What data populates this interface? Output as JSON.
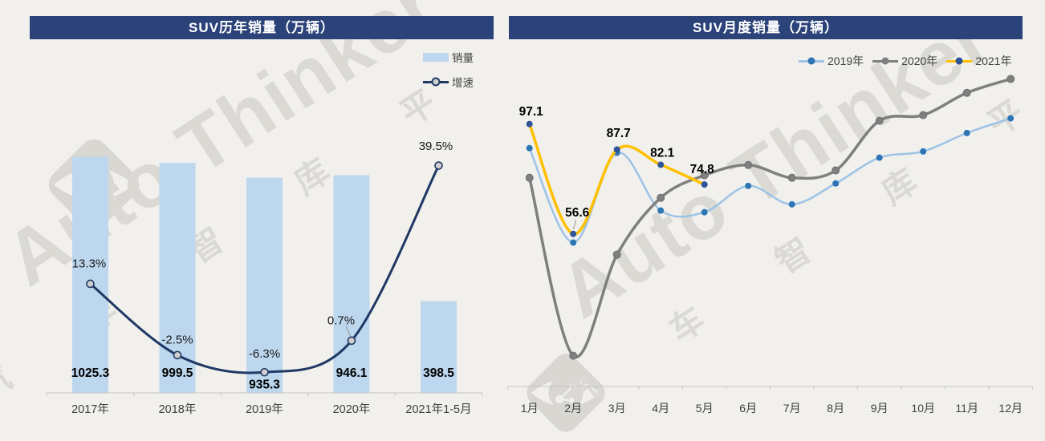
{
  "watermark": {
    "brand": "Auto Thinker",
    "cn": "汽 车 智 库 平 台"
  },
  "colors": {
    "background": "#F1F0ED",
    "banner": "#2B4379",
    "bar_fill": "#BDD7EE",
    "growth_line": "#1F3864",
    "growth_marker_fill": "#D0CECE",
    "axis": "#C6C5C1",
    "label_dark": "#000000",
    "axis_text": "#3F3F3F",
    "series_2019": "#9DC3E6",
    "series_2019_marker": "#2E75B6",
    "series_2020": "#7F7F7F",
    "series_2020_marker": "#7F7F7F",
    "series_2021": "#FFC000",
    "series_2021_marker": "#2F5597",
    "watermark_gray": "#DBD9D4"
  },
  "chart_data": [
    {
      "type": "bar+line",
      "title": "SUV历年销量（万辆）",
      "categories": [
        "2017年",
        "2018年",
        "2019年",
        "2020年",
        "2021年1-5月"
      ],
      "series": [
        {
          "name": "销量",
          "type": "bar",
          "values": [
            1025.3,
            999.5,
            935.3,
            946.1,
            398.5
          ],
          "labels": [
            "1025.3",
            "999.5",
            "935.3",
            "946.1",
            "398.5"
          ]
        },
        {
          "name": "增速",
          "type": "line",
          "unit": "%",
          "axis": "secondary",
          "values": [
            13.3,
            -2.5,
            -6.3,
            0.7,
            39.5
          ],
          "labels": [
            "13.3%",
            "-2.5%",
            "-6.3%",
            "0.7%",
            "39.5%"
          ]
        }
      ],
      "legend_position": "top-right",
      "grid": false
    },
    {
      "type": "line",
      "title": "SUV月度销量（万辆）",
      "categories": [
        "1月",
        "2月",
        "3月",
        "4月",
        "5月",
        "6月",
        "7月",
        "8月",
        "9月",
        "10月",
        "11月",
        "12月"
      ],
      "series": [
        {
          "name": "2019年",
          "values": [
            88.2,
            53.4,
            86.5,
            65.2,
            64.6,
            74.3,
            67.5,
            75.2,
            84.7,
            87.0,
            93.8,
            99.2
          ]
        },
        {
          "name": "2020年",
          "values": [
            77.3,
            11.7,
            48.9,
            69.9,
            78.2,
            82.0,
            77.3,
            80.0,
            98.3,
            100.4,
            108.6,
            113.7
          ]
        },
        {
          "name": "2021年",
          "values": [
            97.1,
            56.6,
            87.7,
            82.1,
            74.8
          ],
          "labels": [
            "97.1",
            "56.6",
            "87.7",
            "82.1",
            "74.8"
          ]
        }
      ],
      "legend_position": "top-right",
      "grid": false
    }
  ]
}
